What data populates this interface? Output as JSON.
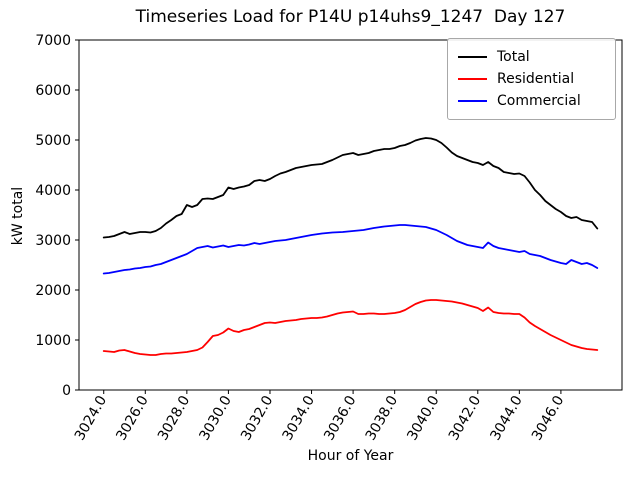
{
  "window": {
    "background": "#ffffff"
  },
  "chart_data": {
    "type": "line",
    "title": "Timeseries Load for P14U p14uhs9_1247  Day 127",
    "xlabel": "Hour of Year",
    "ylabel": "kW total",
    "xlim": [
      3022.81,
      3048.94
    ],
    "ylim": [
      0,
      7000
    ],
    "grid": false,
    "legend_position": "upper right",
    "x_ticks": {
      "values": [
        3024,
        3026,
        3028,
        3030,
        3032,
        3034,
        3036,
        3038,
        3040,
        3042,
        3044,
        3046
      ],
      "labels": [
        "3024.0",
        "3026.0",
        "3028.0",
        "3030.0",
        "3032.0",
        "3034.0",
        "3036.0",
        "3038.0",
        "3040.0",
        "3042.0",
        "3044.0",
        "3046.0"
      ],
      "rotation_deg": 60
    },
    "y_ticks": {
      "values": [
        0,
        1000,
        2000,
        3000,
        4000,
        5000,
        6000,
        7000
      ],
      "labels": [
        "0",
        "1000",
        "2000",
        "3000",
        "4000",
        "5000",
        "6000",
        "7000"
      ]
    },
    "x_start": 3024.0,
    "x_step": 0.25,
    "n_points": 96,
    "series": [
      {
        "name": "Total",
        "color": "#000000",
        "line_width": 1.8,
        "values": [
          3050,
          3060,
          3080,
          3120,
          3160,
          3120,
          3140,
          3160,
          3160,
          3150,
          3180,
          3240,
          3330,
          3400,
          3480,
          3520,
          3700,
          3660,
          3700,
          3820,
          3830,
          3820,
          3860,
          3900,
          4050,
          4020,
          4050,
          4070,
          4100,
          4180,
          4200,
          4180,
          4220,
          4280,
          4330,
          4360,
          4400,
          4440,
          4460,
          4480,
          4500,
          4510,
          4520,
          4560,
          4600,
          4650,
          4700,
          4720,
          4740,
          4700,
          4720,
          4740,
          4780,
          4800,
          4820,
          4820,
          4840,
          4880,
          4900,
          4940,
          4990,
          5020,
          5040,
          5030,
          5000,
          4940,
          4850,
          4750,
          4680,
          4640,
          4600,
          4560,
          4540,
          4500,
          4560,
          4480,
          4440,
          4360,
          4340,
          4320,
          4330,
          4280,
          4150,
          4000,
          3900,
          3780,
          3700,
          3620,
          3560,
          3480,
          3440,
          3460,
          3400,
          3380,
          3360,
          3230
        ]
      },
      {
        "name": "Residential",
        "color": "#ff0000",
        "line_width": 1.8,
        "values": [
          780,
          770,
          760,
          790,
          800,
          770,
          740,
          720,
          710,
          700,
          700,
          720,
          730,
          730,
          740,
          750,
          760,
          780,
          800,
          850,
          960,
          1080,
          1100,
          1150,
          1230,
          1180,
          1160,
          1200,
          1220,
          1260,
          1300,
          1340,
          1350,
          1340,
          1360,
          1380,
          1390,
          1400,
          1420,
          1430,
          1440,
          1440,
          1450,
          1470,
          1500,
          1530,
          1550,
          1560,
          1570,
          1520,
          1520,
          1530,
          1530,
          1520,
          1520,
          1530,
          1540,
          1560,
          1600,
          1660,
          1720,
          1760,
          1790,
          1800,
          1800,
          1790,
          1780,
          1770,
          1750,
          1730,
          1700,
          1670,
          1640,
          1580,
          1650,
          1560,
          1540,
          1530,
          1530,
          1520,
          1520,
          1450,
          1350,
          1280,
          1220,
          1160,
          1100,
          1050,
          1000,
          950,
          900,
          870,
          840,
          820,
          810,
          800
        ]
      },
      {
        "name": "Commercial",
        "color": "#0000ff",
        "line_width": 1.8,
        "values": [
          2330,
          2340,
          2360,
          2380,
          2400,
          2410,
          2430,
          2440,
          2460,
          2470,
          2500,
          2520,
          2560,
          2600,
          2640,
          2680,
          2720,
          2780,
          2840,
          2860,
          2880,
          2850,
          2870,
          2890,
          2860,
          2880,
          2900,
          2890,
          2910,
          2940,
          2920,
          2940,
          2960,
          2980,
          2990,
          3000,
          3020,
          3040,
          3060,
          3080,
          3100,
          3115,
          3130,
          3140,
          3150,
          3155,
          3160,
          3170,
          3180,
          3190,
          3200,
          3220,
          3240,
          3255,
          3270,
          3280,
          3290,
          3300,
          3300,
          3290,
          3280,
          3270,
          3260,
          3230,
          3200,
          3150,
          3100,
          3040,
          2980,
          2940,
          2900,
          2880,
          2860,
          2840,
          2950,
          2880,
          2840,
          2820,
          2800,
          2780,
          2760,
          2780,
          2720,
          2700,
          2680,
          2640,
          2600,
          2570,
          2540,
          2520,
          2600,
          2560,
          2520,
          2540,
          2500,
          2440
        ]
      }
    ]
  },
  "legend": {
    "items": [
      {
        "label": "Total",
        "color": "#000000"
      },
      {
        "label": "Residential",
        "color": "#ff0000"
      },
      {
        "label": "Commercial",
        "color": "#0000ff"
      }
    ]
  }
}
